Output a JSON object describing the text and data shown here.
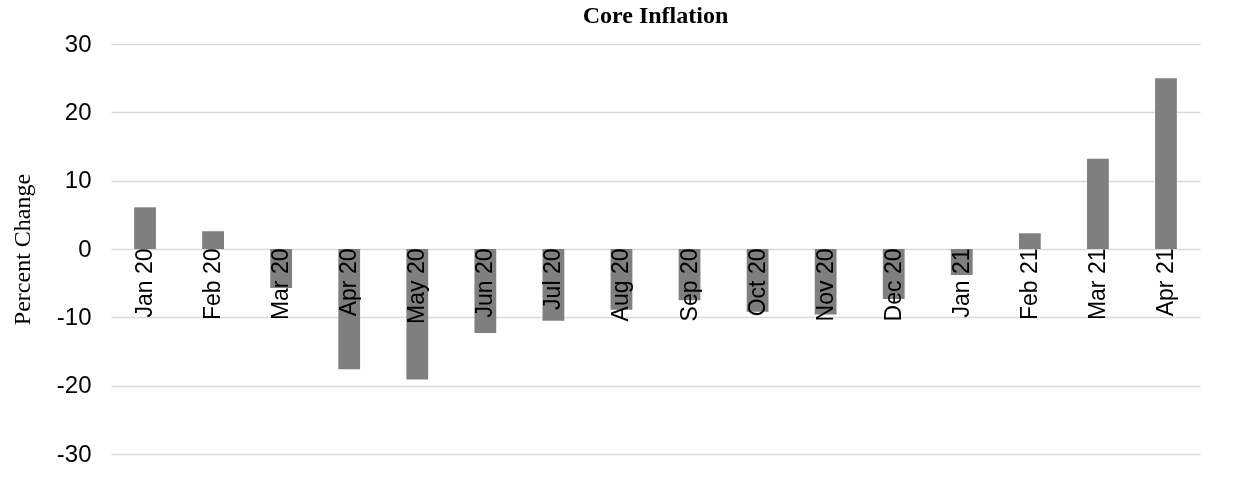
{
  "chart_data": {
    "type": "bar",
    "title": "Core Inflation",
    "ylabel": "Percent Change",
    "categories": [
      "Jan 20",
      "Feb 20",
      "Mar 20",
      "Apr 20",
      "May 20",
      "Jun 20",
      "Jul 20",
      "Aug 20",
      "Sep 20",
      "Oct 20",
      "Nov 20",
      "Dec 20",
      "Jan 21",
      "Feb 21",
      "Mar 21",
      "Apr 21"
    ],
    "values": [
      6.1,
      2.6,
      -5.7,
      -17.6,
      -19.1,
      -12.3,
      -10.5,
      -8.9,
      -7.5,
      -9.2,
      -9.6,
      -7.3,
      -3.8,
      2.3,
      13.2,
      25.0
    ],
    "color": "#7f7f7f",
    "ylim": [
      -30,
      30
    ],
    "yticks": [
      -30,
      -20,
      -10,
      0,
      10,
      20,
      30
    ],
    "grid": "y"
  }
}
